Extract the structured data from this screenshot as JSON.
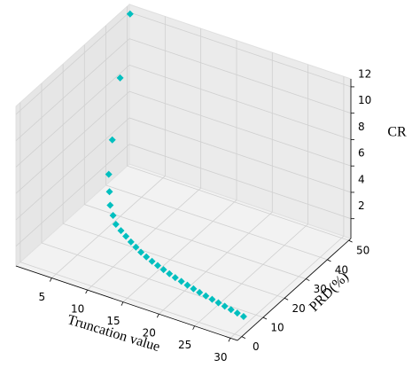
{
  "chart_data": {
    "type": "scatter3d",
    "x_label": "Truncation value",
    "y_label": "PRD(%)",
    "z_label": "CR",
    "x": [
      1,
      2,
      3,
      4,
      5,
      6,
      7,
      8,
      9,
      10,
      11,
      12,
      13,
      14,
      15,
      16,
      17,
      18,
      19,
      20,
      21,
      22,
      23,
      24,
      25,
      26,
      27,
      28,
      29,
      30
    ],
    "y": [
      48,
      40,
      33,
      28,
      25,
      22,
      20,
      18,
      17,
      16,
      15,
      14,
      13,
      12.2,
      11.5,
      10.8,
      10.2,
      9.6,
      9,
      8.5,
      8,
      7.5,
      7,
      6.6,
      6.2,
      5.8,
      5.4,
      5,
      4.6,
      4.2
    ],
    "z": [
      12.5,
      9,
      5.5,
      3.8,
      3.1,
      2.7,
      2.4,
      2.2,
      2.05,
      1.95,
      1.85,
      1.78,
      1.72,
      1.67,
      1.62,
      1.58,
      1.54,
      1.5,
      1.47,
      1.44,
      1.41,
      1.39,
      1.37,
      1.35,
      1.33,
      1.31,
      1.29,
      1.27,
      1.25,
      1.23
    ],
    "color": "#00bfbf",
    "xlim": [
      0,
      31
    ],
    "ylim": [
      -2,
      51
    ],
    "zlim": [
      0.5,
      12.6
    ],
    "xticks": [
      5,
      10,
      15,
      20,
      25,
      30
    ],
    "yticks": [
      0,
      10,
      20,
      30,
      40,
      50
    ],
    "zticks": [
      2,
      4,
      6,
      8,
      10,
      12
    ],
    "grid": true
  }
}
